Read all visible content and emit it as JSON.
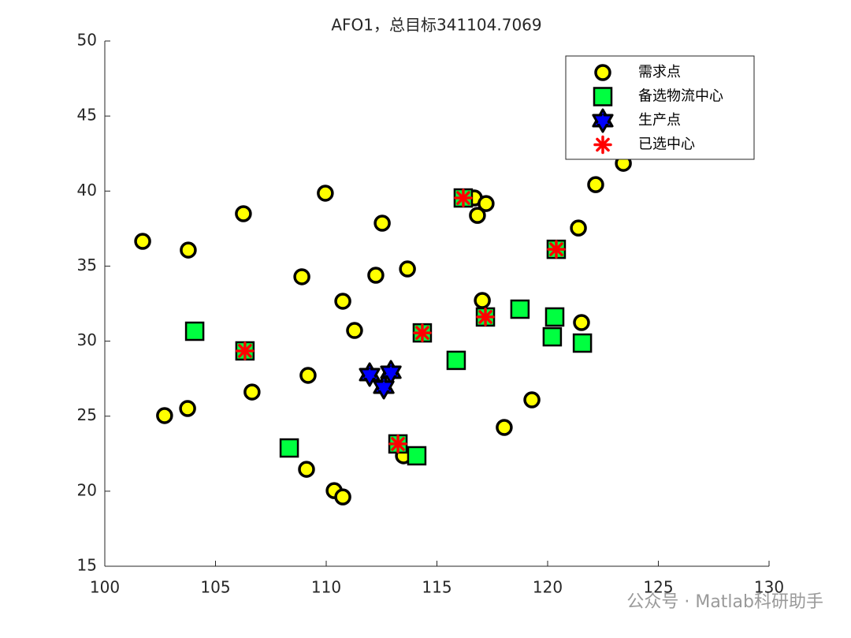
{
  "chart_data": {
    "type": "scatter",
    "title": "AFO1，总目标341104.7069",
    "xlim": [
      100,
      130
    ],
    "ylim": [
      15,
      50
    ],
    "xticks": [
      100,
      105,
      110,
      115,
      120,
      125,
      130
    ],
    "yticks": [
      15,
      20,
      25,
      30,
      35,
      40,
      45,
      50
    ],
    "grid": false,
    "legend": "upper right",
    "watermark": "公众号 · Matlab科研助手",
    "series": [
      {
        "name": "需求点",
        "marker": "circle",
        "color": "#ffff00",
        "edgecolor": "#000000",
        "x": [
          101.71,
          103.77,
          106.26,
          109.96,
          112.53,
          116.69,
          117.22,
          116.83,
          122.17,
          123.42,
          121.39,
          108.9,
          110.75,
          112.24,
          113.67,
          117.05,
          121.53,
          111.28,
          109.18,
          106.65,
          102.7,
          103.74,
          118.04,
          119.29,
          109.11,
          110.36,
          110.75,
          113.49
        ],
        "y": [
          36.65,
          36.07,
          38.49,
          39.86,
          37.86,
          39.54,
          39.17,
          38.38,
          40.43,
          41.85,
          37.54,
          34.29,
          32.66,
          34.39,
          34.81,
          32.71,
          31.24,
          30.71,
          27.72,
          26.61,
          25.04,
          25.51,
          24.25,
          26.09,
          21.46,
          20.04,
          19.62,
          22.36
        ]
      },
      {
        "name": "备选物流中心",
        "marker": "square",
        "color": "#00ff40",
        "edgecolor": "#000000",
        "x": [
          104.06,
          106.33,
          108.33,
          114.09,
          113.24,
          114.34,
          115.87,
          116.19,
          117.19,
          118.75,
          120.39,
          120.32,
          120.21,
          121.57
        ],
        "y": [
          30.66,
          29.35,
          22.88,
          22.36,
          23.15,
          30.55,
          28.72,
          39.54,
          31.61,
          32.13,
          36.12,
          31.61,
          30.29,
          29.87
        ]
      },
      {
        "name": "生产点",
        "marker": "hexagram",
        "color": "#0000ff",
        "edgecolor": "#000000",
        "x": [
          111.96,
          112.92,
          112.6
        ],
        "y": [
          27.77,
          27.93,
          26.93
        ]
      },
      {
        "name": "已选中心",
        "marker": "asterisk",
        "color": "#ff0000",
        "edgecolor": "#ff0000",
        "x": [
          106.33,
          113.24,
          114.34,
          116.19,
          117.19,
          120.39
        ],
        "y": [
          29.35,
          23.15,
          30.55,
          39.54,
          31.61,
          36.12
        ]
      }
    ]
  }
}
